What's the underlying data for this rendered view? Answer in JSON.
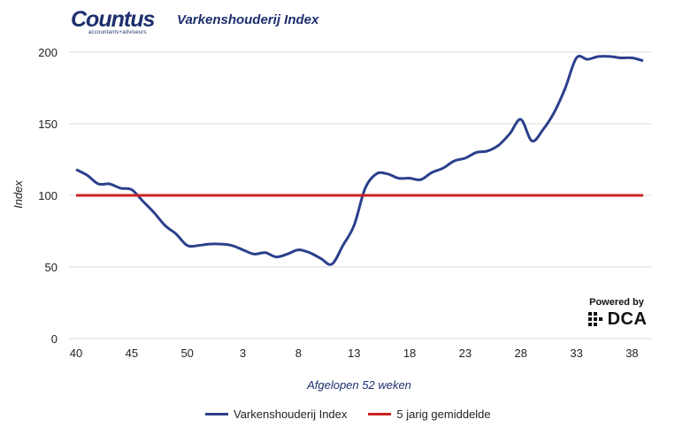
{
  "brand": {
    "name": "Countus",
    "tagline": "accountants+adviseurs"
  },
  "powered": {
    "label": "Powered by",
    "brand": "DCA"
  },
  "chart_data": {
    "type": "line",
    "title": "Varkenshouderij Index",
    "xlabel": "Afgelopen 52 weken",
    "ylabel": "Index",
    "ylim": [
      0,
      200
    ],
    "yticks": [
      "0",
      "50",
      "100",
      "150",
      "200"
    ],
    "grid": true,
    "legend_position": "bottom-center",
    "x_tick_labels": [
      "40",
      "45",
      "50",
      "3",
      "8",
      "13",
      "18",
      "23",
      "28",
      "33",
      "38"
    ],
    "x_tick_every": 5,
    "series": [
      {
        "name": "Varkenshouderij Index",
        "color": "#2b3f8c",
        "values": [
          118,
          114,
          108,
          108,
          105,
          104,
          96,
          88,
          79,
          73,
          65,
          65,
          66,
          66,
          65,
          62,
          59,
          60,
          57,
          59,
          62,
          60,
          56,
          52,
          65,
          79,
          105,
          115,
          115,
          112,
          112,
          111,
          116,
          119,
          124,
          126,
          130,
          131,
          135,
          143,
          153,
          138,
          146,
          158,
          175,
          196,
          195,
          197,
          197,
          196,
          196,
          194
        ]
      },
      {
        "name": "5 jarig gemiddelde",
        "color": "#cc2222",
        "values": [
          100,
          100,
          100,
          100,
          100,
          100,
          100,
          100,
          100,
          100,
          100,
          100,
          100,
          100,
          100,
          100,
          100,
          100,
          100,
          100,
          100,
          100,
          100,
          100,
          100,
          100,
          100,
          100,
          100,
          100,
          100,
          100,
          100,
          100,
          100,
          100,
          100,
          100,
          100,
          100,
          100,
          100,
          100,
          100,
          100,
          100,
          100,
          100,
          100,
          100,
          100,
          100
        ]
      }
    ]
  }
}
